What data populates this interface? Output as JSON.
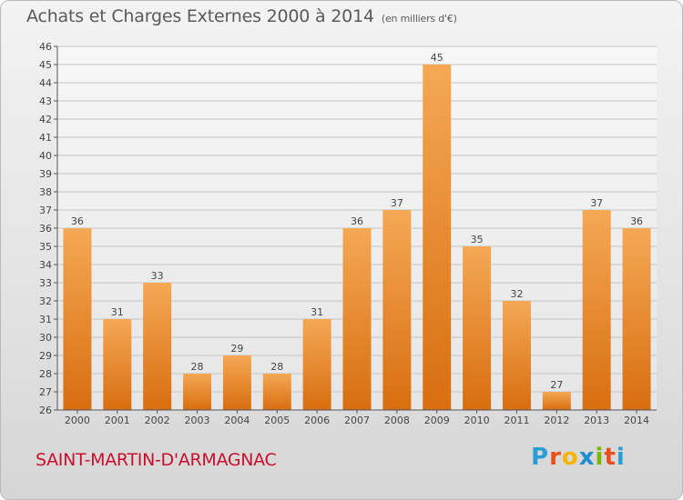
{
  "header": {
    "title": "Achats et Charges Externes 2000 à 2014",
    "unit": "(en milliers d'€)"
  },
  "footer": {
    "commune": "SAINT-MARTIN-D'ARMAGNAC",
    "logo_text": "Proxiti",
    "logo_letters": [
      "P",
      "r",
      "o",
      "x",
      "i",
      "t",
      "i"
    ]
  },
  "colors": {
    "bar_top": "#f5a855",
    "bar_bottom": "#d86e10",
    "commune": "#c8102e",
    "grid": "#c4c4c4"
  },
  "chart_data": {
    "type": "bar",
    "title": "Achats et Charges Externes 2000 à 2014",
    "subtitle": "(en milliers d'€)",
    "categories": [
      "2000",
      "2001",
      "2002",
      "2003",
      "2004",
      "2005",
      "2006",
      "2007",
      "2008",
      "2009",
      "2010",
      "2011",
      "2012",
      "2013",
      "2014"
    ],
    "values": [
      36,
      31,
      33,
      28,
      29,
      28,
      31,
      36,
      37,
      45,
      35,
      32,
      27,
      37,
      36
    ],
    "ylim": [
      26,
      46
    ],
    "yticks": [
      26,
      27,
      28,
      29,
      30,
      31,
      32,
      33,
      34,
      35,
      36,
      37,
      38,
      39,
      40,
      41,
      42,
      43,
      44,
      45,
      46
    ],
    "grid": true,
    "xlabel": "",
    "ylabel": ""
  }
}
